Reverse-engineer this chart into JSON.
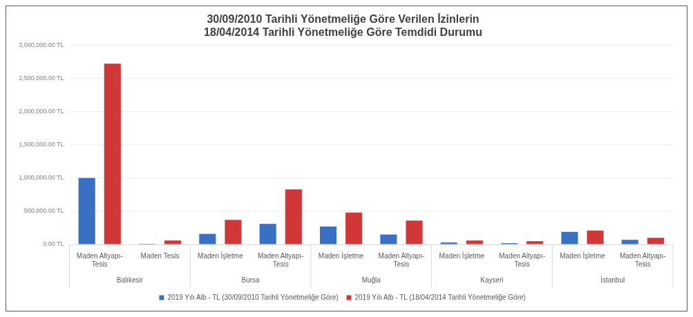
{
  "chart_data": {
    "type": "bar",
    "title": "30/09/2010 Tarihli Yönetmeliğe Göre Verilen İzinlerin\n18/04/2014 Tarihli Yönetmeliğe Göre Temdidi Durumu",
    "categories": [
      "Maden Altyapı-Tesis",
      "Maden Tesis",
      "Maden İşletme",
      "Maden Altyapı-Tesis",
      "Maden İşletme",
      "Maden Altyapı-Tesis",
      "Maden İşletme",
      "Maden Altyapı-Tesis",
      "Maden İşletme",
      "Maden Altyapı-Tesis"
    ],
    "annotations": [
      "Balıkesir",
      "Bursa",
      "Muğla",
      "Kayseri",
      "İstanbul"
    ],
    "series": [
      {
        "name": "2019 Yılı Alb - TL (30/09/2010 Tarihli Yönetmeliğe Göre)",
        "color": "#3a70c4",
        "values": [
          1000000,
          10000,
          160000,
          310000,
          270000,
          150000,
          30000,
          20000,
          190000,
          70000
        ]
      },
      {
        "name": "2019 Yılı Alb - TL (18/04/2014 Tarihli Yönetmeliğe Göre)",
        "color": "#d03838",
        "values": [
          2720000,
          60000,
          370000,
          830000,
          480000,
          360000,
          60000,
          50000,
          210000,
          100000
        ]
      }
    ],
    "ylim": [
      0,
      3000000
    ],
    "yticks": [
      {
        "value": 0,
        "label": "0.00 TL"
      },
      {
        "value": 500000,
        "label": "500,000.00 TL"
      },
      {
        "value": 1000000,
        "label": "1,000,000.00 TL"
      },
      {
        "value": 1500000,
        "label": "1,500,000.00 TL"
      },
      {
        "value": 2000000,
        "label": "2,000,000.00 TL"
      },
      {
        "value": 2500000,
        "label": "2,500,000.00 TL"
      },
      {
        "value": 3000000,
        "label": "3,000,000.00 TL"
      }
    ],
    "grid": "y",
    "legend": "bottom"
  }
}
